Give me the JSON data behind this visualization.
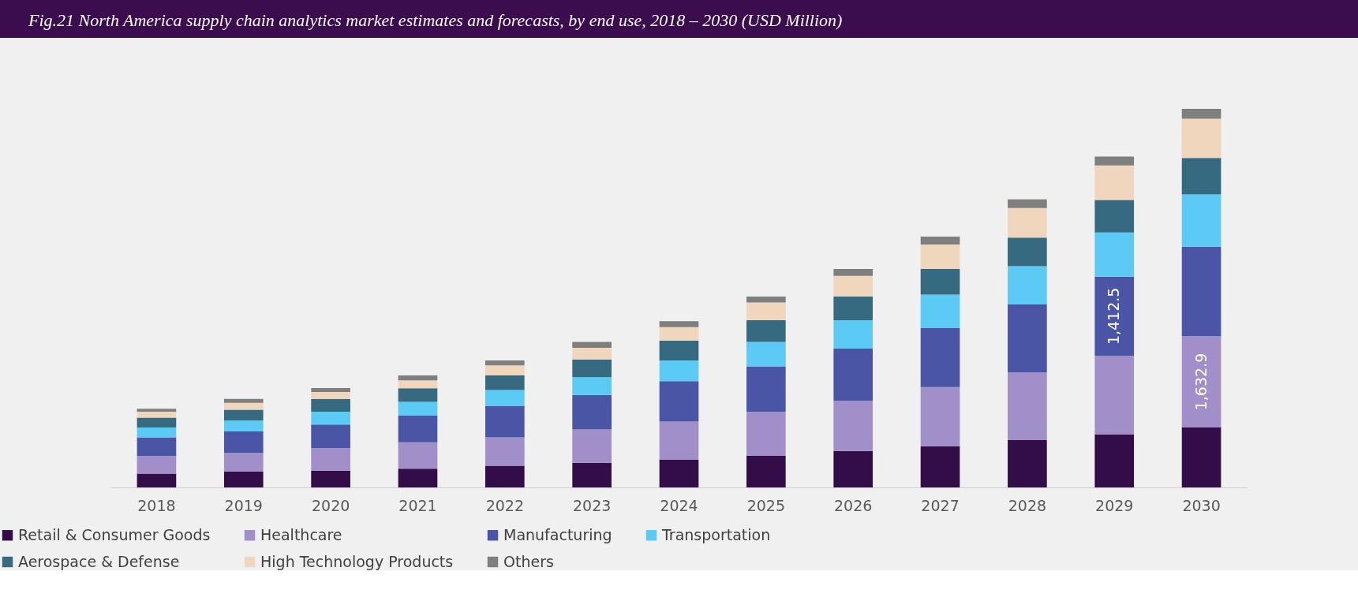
{
  "chart_data": {
    "type": "bar",
    "title": "Fig.21  North America supply chain analytics market estimates and forecasts, by end use, 2018 – 2030 (USD Million)",
    "categories": [
      "2018",
      "2019",
      "2020",
      "2021",
      "2022",
      "2023",
      "2024",
      "2025",
      "2026",
      "2027",
      "2028",
      "2029",
      "2030"
    ],
    "stacked": true,
    "legend": "bottom",
    "tick_labels": "x",
    "grid": false,
    "series": [
      {
        "name": "Retail & Consumer Goods",
        "color": "#330d47",
        "values": [
          246,
          282,
          299,
          334,
          387,
          440,
          493,
          563,
          651,
          739,
          845,
          950,
          1074
        ]
      },
      {
        "name": "Healthcare",
        "color": "#a08fc8",
        "values": [
          317,
          334,
          405,
          475,
          510,
          598,
          686,
          792,
          898,
          1056,
          1214,
          1408,
          1632.9
        ],
        "value_labels": [
          null,
          null,
          null,
          null,
          null,
          null,
          null,
          null,
          null,
          null,
          null,
          null,
          "1,632.9"
        ]
      },
      {
        "name": "Manufacturing",
        "color": "#4a55a5",
        "values": [
          334,
          387,
          422,
          475,
          563,
          616,
          722,
          810,
          933,
          1056,
          1214,
          1412.5,
          1602
        ],
        "value_labels": [
          null,
          null,
          null,
          null,
          null,
          null,
          null,
          null,
          null,
          null,
          null,
          "1,412.5",
          null
        ]
      },
      {
        "name": "Transportation",
        "color": "#5bcbf5",
        "values": [
          176,
          194,
          229,
          246,
          282,
          317,
          370,
          440,
          510,
          598,
          686,
          792,
          933
        ]
      },
      {
        "name": "Aerospace & Defense",
        "color": "#356a80",
        "values": [
          176,
          194,
          229,
          246,
          264,
          317,
          352,
          387,
          422,
          458,
          510,
          581,
          651
        ]
      },
      {
        "name": "High Technology Products",
        "color": "#efd6bc",
        "values": [
          106,
          123,
          123,
          141,
          176,
          211,
          246,
          317,
          370,
          440,
          528,
          616,
          704
        ]
      },
      {
        "name": "Others",
        "color": "#7f7f7f",
        "values": [
          53,
          70,
          70,
          88,
          88,
          106,
          106,
          106,
          123,
          141,
          158,
          158,
          176
        ]
      }
    ]
  }
}
